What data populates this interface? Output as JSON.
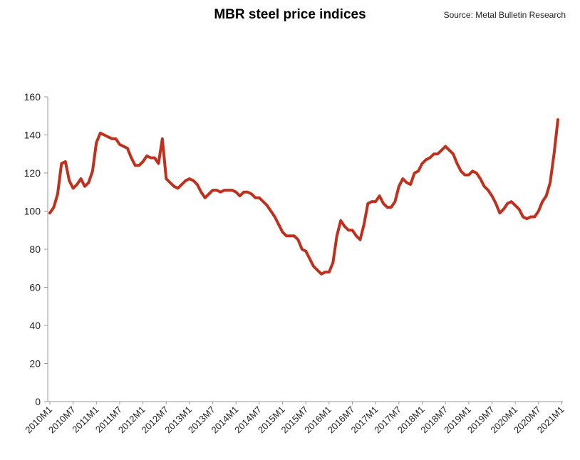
{
  "chart_data": {
    "type": "line",
    "title": "MBR steel price indices",
    "source": "Source: Metal Bulletin Research",
    "xlabel": "",
    "ylabel": "",
    "ylim": [
      0,
      160
    ],
    "yticks": [
      0,
      20,
      40,
      60,
      80,
      100,
      120,
      140,
      160
    ],
    "xtick_labels": [
      "2010M1",
      "2010M7",
      "2011M1",
      "2011M7",
      "2012M1",
      "2012M7",
      "2013M1",
      "2013M7",
      "2014M1",
      "2014M7",
      "2015M1",
      "2015M7",
      "2016M1",
      "2016M7",
      "2017M1",
      "2017M7",
      "2018M1",
      "2018M7",
      "2019M1",
      "2019M7",
      "2020M1",
      "2020M7",
      "2021M1"
    ],
    "grid": false,
    "line_color": "#c0301c",
    "series": [
      {
        "x_start": "2010M1",
        "values": [
          99,
          102,
          109,
          125,
          126,
          116,
          112,
          114,
          117,
          113,
          115,
          121,
          136,
          141,
          140,
          139,
          138,
          138,
          135,
          134,
          133,
          128,
          124,
          124,
          126,
          129,
          128,
          128,
          125,
          138,
          117,
          115,
          113,
          112,
          114,
          116,
          117,
          116,
          114,
          110,
          107,
          109,
          111,
          111,
          110,
          111,
          111,
          111,
          110,
          108,
          110,
          110,
          109,
          107,
          107,
          105,
          103,
          100,
          97,
          93,
          89,
          87,
          87,
          87,
          85,
          80,
          79,
          75,
          71,
          69,
          67,
          68,
          68,
          73,
          87,
          95,
          92,
          90,
          90,
          87,
          85,
          93,
          104,
          105,
          105,
          108,
          104,
          102,
          102,
          105,
          113,
          117,
          115,
          114,
          120,
          121,
          125,
          127,
          128,
          130,
          130,
          132,
          134,
          132,
          130,
          125,
          121,
          119,
          119,
          121,
          120,
          117,
          113,
          111,
          108,
          104,
          99,
          101,
          104,
          105,
          103,
          101,
          97,
          96,
          97,
          97,
          100,
          105,
          108,
          115,
          130,
          148
        ]
      }
    ]
  }
}
